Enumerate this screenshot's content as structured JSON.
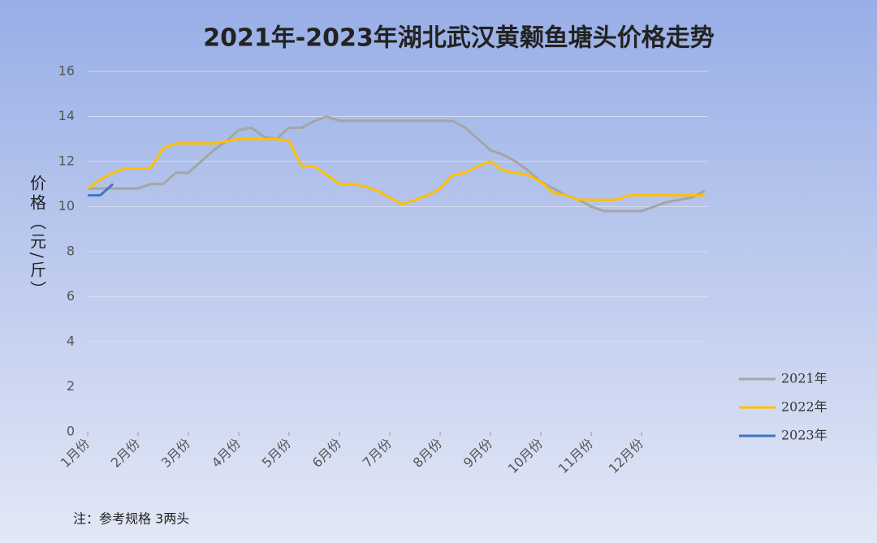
{
  "chart_data": {
    "type": "line",
    "title": "2021年-2023年湖北武汉黄颡鱼塘头价格走势",
    "y_label": "价格（元/斤）",
    "note": "注：参考规格 3两头",
    "x": [
      1,
      1.25,
      1.5,
      1.75,
      2,
      2.25,
      2.5,
      2.75,
      3,
      3.25,
      3.5,
      3.75,
      4,
      4.25,
      4.5,
      4.75,
      5,
      5.25,
      5.5,
      5.75,
      6,
      6.25,
      6.5,
      6.75,
      7,
      7.25,
      7.5,
      7.75,
      8,
      8.25,
      8.5,
      8.75,
      9,
      9.25,
      9.5,
      9.75,
      10,
      10.25,
      10.5,
      10.75,
      11,
      11.25,
      11.5,
      11.75,
      12,
      12.25,
      12.5,
      12.75,
      13,
      13.25
    ],
    "xlim": [
      1,
      13.32
    ],
    "xticks": [
      {
        "value": 1,
        "label": "1月份"
      },
      {
        "value": 2,
        "label": "2月份"
      },
      {
        "value": 3,
        "label": "3月份"
      },
      {
        "value": 4,
        "label": "4月份"
      },
      {
        "value": 5,
        "label": "5月份"
      },
      {
        "value": 6,
        "label": "6月份"
      },
      {
        "value": 7,
        "label": "7月份"
      },
      {
        "value": 8,
        "label": "8月份"
      },
      {
        "value": 9,
        "label": "9月份"
      },
      {
        "value": 10,
        "label": "10月份"
      },
      {
        "value": 11,
        "label": "11月份"
      },
      {
        "value": 12,
        "label": "12月份"
      }
    ],
    "ylim": [
      0,
      16
    ],
    "yticks": [
      0,
      2,
      4,
      6,
      8,
      10,
      12,
      14,
      16
    ],
    "grid": true,
    "legend": "right",
    "series": [
      {
        "name": "2021年",
        "color": "#a5a5a5",
        "values": [
          10.8,
          10.8,
          10.8,
          10.8,
          10.8,
          11,
          11,
          11.5,
          11.5,
          12,
          12.5,
          12.9,
          13.4,
          13.5,
          13.1,
          13,
          13.5,
          13.5,
          13.8,
          14,
          13.8,
          13.8,
          13.8,
          13.8,
          13.8,
          13.8,
          13.8,
          13.8,
          13.8,
          13.8,
          13.5,
          13,
          12.5,
          12.3,
          12,
          11.6,
          11.1,
          10.8,
          10.5,
          10.3,
          10,
          9.8,
          9.8,
          9.8,
          9.8,
          10,
          10.2,
          10.3,
          10.4,
          10.7
        ]
      },
      {
        "name": "2022年",
        "color": "#ffc000",
        "values": [
          10.8,
          11.2,
          11.5,
          11.7,
          11.7,
          11.7,
          12.6,
          12.8,
          12.8,
          12.8,
          12.8,
          12.9,
          13,
          13,
          13,
          13,
          12.9,
          11.8,
          11.8,
          11.4,
          11,
          11,
          10.9,
          10.7,
          10.4,
          10.1,
          10.3,
          10.5,
          10.8,
          11.4,
          11.5,
          11.8,
          12,
          11.6,
          11.5,
          11.4,
          11.1,
          10.6,
          10.5,
          10.3,
          10.3,
          10.3,
          10.3,
          10.5,
          10.5,
          10.5,
          10.5,
          10.5,
          10.5,
          10.5
        ]
      },
      {
        "name": "2023年",
        "color": "#4472c4",
        "values": [
          10.5,
          10.5,
          11,
          null,
          null,
          null,
          null,
          null,
          null,
          null,
          null,
          null,
          null,
          null,
          null,
          null,
          null,
          null,
          null,
          null,
          null,
          null,
          null,
          null,
          null,
          null,
          null,
          null,
          null,
          null,
          null,
          null,
          null,
          null,
          null,
          null,
          null,
          null,
          null,
          null,
          null,
          null,
          null,
          null,
          null,
          null,
          null,
          null,
          null,
          null
        ]
      }
    ]
  }
}
